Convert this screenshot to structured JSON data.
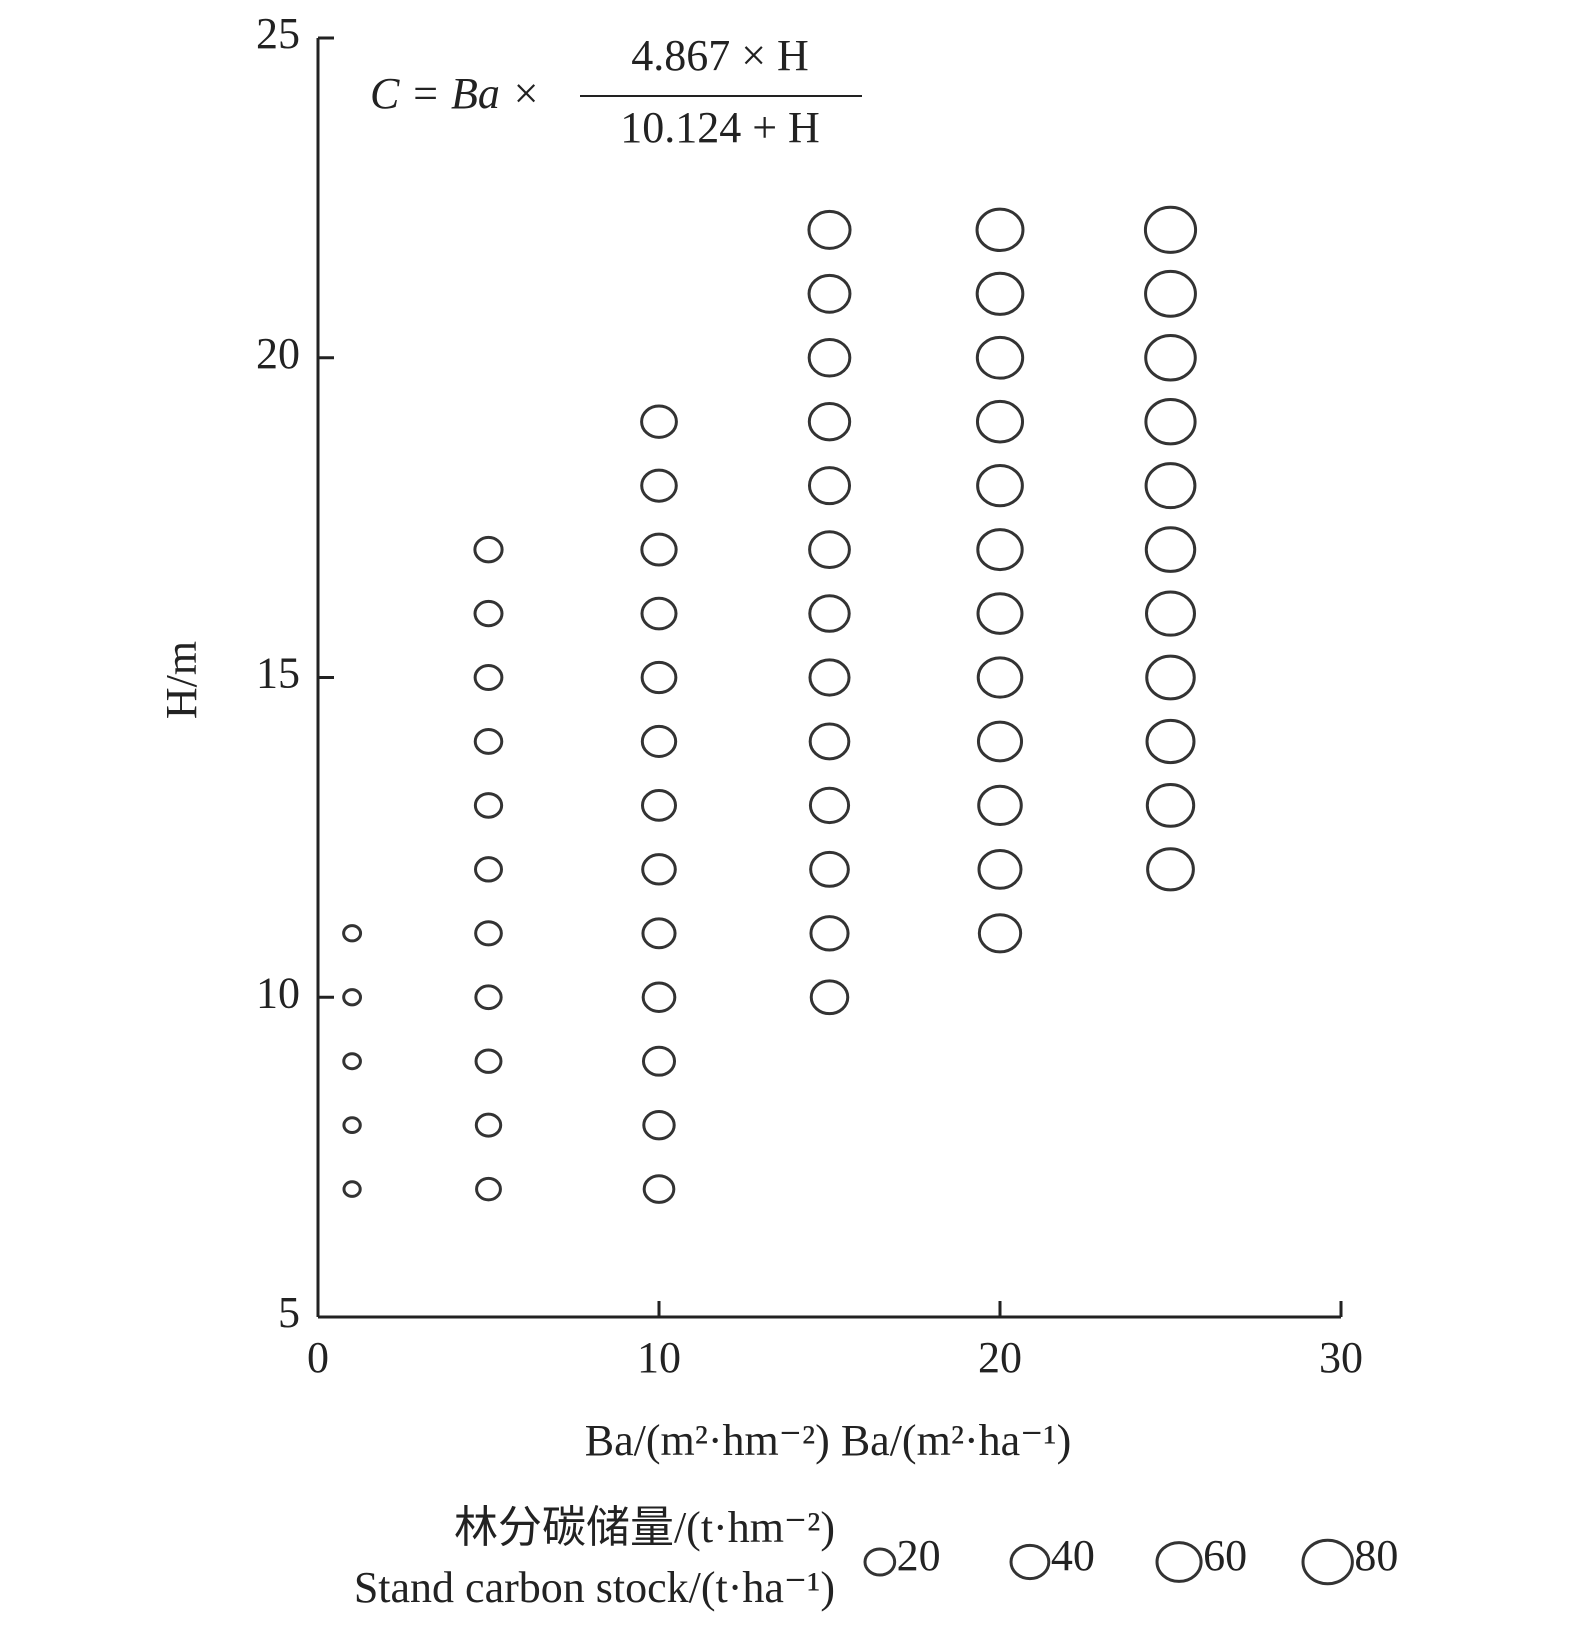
{
  "chart_data": {
    "type": "scatter",
    "formula": {
      "lhs": "C = Ba ×",
      "numerator": "4.867 × H",
      "denominator": "10.124 + H"
    },
    "xlabel": "Ba/(m²·hm⁻²) Ba/(m²·ha⁻¹)",
    "ylabel": "H/m",
    "xlim": [
      0,
      30
    ],
    "xticks": [
      0,
      10,
      20,
      30
    ],
    "ylim": [
      5,
      25
    ],
    "yticks": [
      5,
      10,
      15,
      20,
      25
    ],
    "color": "#333333",
    "x": [
      1,
      1,
      1,
      1,
      1,
      5,
      5,
      5,
      5,
      5,
      5,
      5,
      5,
      5,
      5,
      5,
      10,
      10,
      10,
      10,
      10,
      10,
      10,
      10,
      10,
      10,
      10,
      10,
      10,
      15,
      15,
      15,
      15,
      15,
      15,
      15,
      15,
      15,
      15,
      15,
      15,
      15,
      20,
      20,
      20,
      20,
      20,
      20,
      20,
      20,
      20,
      20,
      20,
      20,
      25,
      25,
      25,
      25,
      25,
      25,
      25,
      25,
      25,
      25,
      25
    ],
    "y": [
      7,
      8,
      9,
      10,
      11,
      7,
      8,
      9,
      10,
      11,
      12,
      13,
      14,
      15,
      16,
      17,
      7,
      8,
      9,
      10,
      11,
      12,
      13,
      14,
      15,
      16,
      17,
      18,
      19,
      10,
      11,
      12,
      13,
      14,
      15,
      16,
      17,
      18,
      19,
      20,
      21,
      22,
      11,
      12,
      13,
      14,
      15,
      16,
      17,
      18,
      19,
      20,
      21,
      22,
      12,
      13,
      14,
      15,
      16,
      17,
      18,
      19,
      20,
      21,
      22
    ],
    "sizes": [
      2.0,
      2.1,
      2.3,
      2.4,
      2.5,
      9.9,
      10.7,
      11.5,
      12.1,
      12.7,
      13.2,
      13.7,
      14.1,
      14.5,
      14.9,
      15.3,
      19.9,
      21.5,
      22.9,
      24.2,
      25.3,
      26.4,
      27.4,
      28.2,
      29.1,
      29.8,
      30.5,
      31.2,
      31.8,
      36.3,
      38.0,
      39.6,
      41.0,
      42.4,
      43.6,
      44.7,
      45.8,
      46.7,
      47.6,
      48.5,
      49.3,
      50.0,
      50.7,
      52.8,
      54.7,
      56.5,
      58.1,
      59.6,
      61.0,
      62.3,
      63.5,
      64.6,
      65.7,
      66.7,
      66.0,
      68.4,
      70.6,
      72.6,
      74.5,
      76.3,
      77.9,
      79.4,
      80.8,
      82.1,
      83.3
    ],
    "legend_title": [
      "林分碳储量/(t·hm⁻²)",
      "Stand carbon stock/(t·ha⁻¹)"
    ],
    "legend_sizes": [
      20,
      40,
      60,
      80
    ]
  }
}
